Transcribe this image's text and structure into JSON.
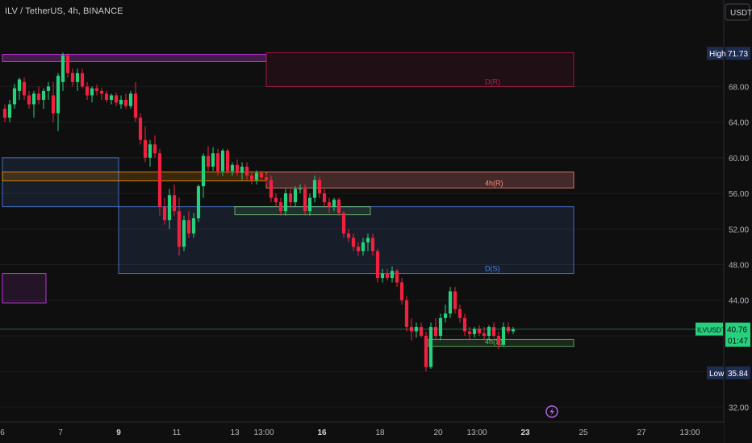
{
  "header": {
    "title": "ILV / TetherUS, 4h, BINANCE",
    "currency_button": "USDT"
  },
  "colors": {
    "up": "#26d07c",
    "down": "#f0213f",
    "background": "#0f0f0f",
    "grid": "#1c1c1c",
    "axis_text": "#b2b5be"
  },
  "chart_data": {
    "type": "candlestick",
    "symbol": "ILVUSDT",
    "ylim": [
      30.5,
      75
    ],
    "x_ticks": [
      {
        "label": "6",
        "i": 0
      },
      {
        "label": "7",
        "i": 6
      },
      {
        "label": "9",
        "i": 12
      },
      {
        "label": "11",
        "i": 18
      },
      {
        "label": "13",
        "i": 24
      },
      {
        "label": "13:00",
        "i": 27
      },
      {
        "label": "16",
        "i": 33
      },
      {
        "label": "18",
        "i": 39
      },
      {
        "label": "20",
        "i": 45
      },
      {
        "label": "13:00",
        "i": 49
      },
      {
        "label": "23",
        "i": 54
      },
      {
        "label": "25",
        "i": 60
      },
      {
        "label": "27",
        "i": 66
      },
      {
        "label": "13:00",
        "i": 71
      }
    ],
    "y_ticks": [
      "68.00",
      "64.00",
      "60.00",
      "56.00",
      "52.00",
      "48.00",
      "44.00",
      "40.00",
      "36.00",
      "32.00"
    ],
    "candles": [
      [
        65.5,
        66.0,
        64.0,
        64.5
      ],
      [
        64.5,
        66.5,
        64.0,
        66.0
      ],
      [
        66.0,
        68.3,
        65.5,
        67.8
      ],
      [
        67.5,
        69.0,
        66.5,
        68.8
      ],
      [
        68.5,
        69.0,
        66.5,
        67.0
      ],
      [
        67.0,
        67.5,
        65.5,
        66.0
      ],
      [
        66.0,
        67.5,
        64.5,
        67.2
      ],
      [
        67.2,
        68.0,
        66.0,
        66.5
      ],
      [
        66.5,
        67.8,
        65.5,
        67.5
      ],
      [
        67.5,
        68.5,
        66.5,
        68.0
      ],
      [
        67.0,
        68.5,
        64.0,
        65.0
      ],
      [
        65.0,
        69.5,
        63.0,
        69.2
      ],
      [
        68.5,
        71.8,
        67.5,
        71.5
      ],
      [
        71.5,
        71.7,
        69.0,
        69.5
      ],
      [
        69.5,
        70.0,
        68.0,
        68.5
      ],
      [
        68.5,
        70.0,
        67.5,
        69.5
      ],
      [
        69.5,
        70.0,
        67.8,
        68.0
      ],
      [
        68.0,
        68.5,
        66.5,
        67.0
      ],
      [
        67.0,
        68.0,
        66.2,
        67.8
      ],
      [
        67.8,
        68.2,
        67.0,
        67.5
      ],
      [
        67.5,
        67.8,
        66.5,
        67.2
      ],
      [
        67.2,
        67.5,
        66.2,
        66.5
      ],
      [
        66.5,
        67.2,
        66.0,
        67.0
      ],
      [
        67.0,
        67.3,
        65.8,
        66.2
      ],
      [
        66.0,
        67.0,
        65.5,
        66.5
      ],
      [
        66.5,
        67.2,
        65.5,
        65.8
      ],
      [
        65.8,
        67.5,
        65.5,
        67.2
      ],
      [
        67.2,
        68.5,
        64.0,
        64.5
      ],
      [
        64.5,
        65.0,
        61.5,
        62.0
      ],
      [
        62.0,
        63.5,
        59.5,
        60.0
      ],
      [
        60.0,
        62.0,
        59.0,
        61.5
      ],
      [
        61.5,
        62.5,
        60.0,
        60.5
      ],
      [
        60.5,
        61.0,
        53.5,
        54.5
      ],
      [
        54.5,
        55.5,
        52.5,
        53.0
      ],
      [
        53.0,
        56.5,
        52.0,
        55.8
      ],
      [
        55.8,
        57.0,
        53.5,
        54.0
      ],
      [
        54.0,
        55.5,
        49.0,
        50.0
      ],
      [
        50.0,
        53.5,
        49.5,
        53.0
      ],
      [
        53.0,
        54.0,
        51.0,
        51.5
      ],
      [
        51.5,
        53.8,
        51.0,
        53.2
      ],
      [
        53.2,
        57.0,
        52.8,
        56.8
      ],
      [
        56.8,
        60.5,
        55.5,
        60.2
      ],
      [
        60.2,
        61.3,
        58.5,
        59.0
      ],
      [
        59.0,
        61.2,
        58.5,
        60.5
      ],
      [
        60.5,
        61.0,
        58.0,
        58.5
      ],
      [
        58.5,
        61.0,
        58.0,
        60.8
      ],
      [
        60.8,
        61.0,
        58.2,
        58.5
      ],
      [
        58.5,
        59.5,
        58.0,
        59.2
      ],
      [
        59.2,
        59.8,
        58.0,
        58.3
      ],
      [
        58.3,
        59.5,
        57.5,
        59.0
      ],
      [
        59.0,
        59.5,
        57.5,
        58.0
      ],
      [
        58.0,
        58.5,
        57.0,
        57.5
      ],
      [
        57.5,
        58.6,
        57.0,
        58.3
      ],
      [
        58.3,
        58.5,
        57.5,
        57.8
      ],
      [
        57.8,
        58.2,
        57.0,
        57.5
      ],
      [
        57.5,
        58.0,
        55.0,
        55.5
      ],
      [
        55.5,
        56.0,
        54.5,
        55.0
      ],
      [
        55.0,
        55.5,
        53.5,
        54.0
      ],
      [
        54.0,
        56.5,
        53.5,
        56.0
      ],
      [
        56.0,
        56.5,
        54.5,
        55.0
      ],
      [
        55.0,
        56.8,
        54.5,
        56.5
      ],
      [
        56.5,
        57.0,
        56.0,
        56.5
      ],
      [
        56.5,
        57.0,
        53.5,
        54.0
      ],
      [
        54.0,
        56.0,
        53.5,
        55.5
      ],
      [
        55.5,
        58.0,
        55.0,
        57.5
      ],
      [
        57.5,
        57.8,
        55.5,
        56.0
      ],
      [
        56.0,
        56.5,
        54.5,
        55.0
      ],
      [
        55.0,
        55.5,
        53.8,
        54.5
      ],
      [
        54.5,
        55.5,
        54.0,
        55.3
      ],
      [
        55.3,
        55.5,
        53.5,
        53.8
      ],
      [
        53.8,
        54.0,
        51.0,
        51.5
      ],
      [
        51.5,
        52.0,
        50.5,
        51.0
      ],
      [
        51.0,
        51.5,
        49.5,
        50.0
      ],
      [
        50.0,
        50.5,
        49.0,
        49.5
      ],
      [
        49.5,
        51.0,
        49.0,
        50.5
      ],
      [
        50.5,
        51.5,
        49.5,
        51.0
      ],
      [
        51.0,
        51.5,
        49.0,
        49.5
      ],
      [
        49.5,
        49.8,
        46.0,
        46.5
      ],
      [
        46.5,
        47.5,
        46.0,
        47.0
      ],
      [
        47.0,
        47.5,
        46.2,
        46.5
      ],
      [
        46.5,
        47.8,
        46.0,
        47.3
      ],
      [
        47.3,
        47.5,
        45.5,
        46.0
      ],
      [
        46.0,
        46.5,
        43.5,
        44.0
      ],
      [
        44.0,
        44.5,
        40.5,
        41.0
      ],
      [
        41.0,
        42.0,
        39.5,
        40.5
      ],
      [
        40.5,
        41.5,
        39.8,
        41.0
      ],
      [
        41.0,
        41.5,
        39.8,
        40.0
      ],
      [
        40.0,
        40.5,
        36.0,
        36.5
      ],
      [
        36.5,
        41.5,
        36.3,
        41.0
      ],
      [
        41.0,
        42.0,
        39.5,
        40.0
      ],
      [
        40.0,
        42.5,
        39.5,
        42.0
      ],
      [
        42.0,
        43.5,
        41.5,
        42.5
      ],
      [
        42.5,
        45.5,
        42.0,
        45.0
      ],
      [
        45.0,
        45.5,
        42.5,
        43.0
      ],
      [
        43.0,
        43.5,
        41.5,
        42.0
      ],
      [
        42.0,
        42.5,
        40.0,
        40.5
      ],
      [
        40.5,
        41.0,
        39.5,
        40.2
      ],
      [
        40.2,
        41.0,
        39.8,
        40.8
      ],
      [
        40.8,
        41.2,
        40.0,
        40.3
      ],
      [
        40.3,
        41.0,
        39.5,
        40.0
      ],
      [
        40.0,
        41.2,
        39.5,
        41.0
      ],
      [
        41.0,
        41.5,
        39.8,
        40.0
      ],
      [
        40.0,
        40.5,
        38.5,
        39.0
      ],
      [
        39.0,
        41.5,
        38.8,
        41.0
      ],
      [
        41.0,
        41.5,
        40.2,
        40.5
      ],
      [
        40.5,
        41.0,
        40.2,
        40.76
      ]
    ],
    "zones": [
      {
        "label": "",
        "color": "#e040fb",
        "top": 71.6,
        "bottom": 70.8,
        "start": 0,
        "end": 54.5,
        "alpha": 0.25
      },
      {
        "label": "D(S)",
        "color": "#4f84e8",
        "top": 54.5,
        "bottom": 47.0,
        "start": 24,
        "end": 118,
        "alpha": 0.12
      },
      {
        "label": "4h(R)",
        "color": "#ff8a80",
        "top": 58.4,
        "bottom": 56.6,
        "start": 54.5,
        "end": 118,
        "alpha": 0.22
      },
      {
        "label": "D(R)",
        "color": "#c2185b",
        "top": 71.8,
        "bottom": 68.0,
        "start": 54.5,
        "end": 118,
        "alpha": 0.1
      },
      {
        "label": "4h(S)",
        "color": "#66bb6a",
        "top": 39.6,
        "bottom": 38.8,
        "start": 88,
        "end": 118,
        "alpha": 0.15
      },
      {
        "label": "",
        "color": "#e040fb",
        "top": 47.0,
        "bottom": 43.7,
        "start": 0,
        "end": 9,
        "alpha": 0.1
      },
      {
        "label": "",
        "color": "#4f84e8",
        "top": 60.0,
        "bottom": 54.5,
        "start": 0,
        "end": 24,
        "alpha": 0.12
      },
      {
        "label": "",
        "color": "#ff9800",
        "top": 58.4,
        "bottom": 57.4,
        "start": 0,
        "end": 54.5,
        "alpha": 0.18
      },
      {
        "label": "",
        "color": "#7ccf7a",
        "top": 54.5,
        "bottom": 53.6,
        "start": 48,
        "end": 76,
        "alpha": 0.1
      }
    ],
    "price_tags": [
      {
        "label": "High",
        "value": "71.73",
        "price": 71.73,
        "color": "#1e2c52",
        "text": "#ffffff"
      },
      {
        "label": "ILVUSDT",
        "value": "40.76",
        "price": 40.76,
        "countdown": "01:47",
        "color": "#26d07c",
        "text": "#0f0f0f"
      },
      {
        "label": "Low",
        "value": "35.84",
        "price": 35.84,
        "color": "#1e2c52",
        "text": "#ffffff"
      }
    ]
  }
}
